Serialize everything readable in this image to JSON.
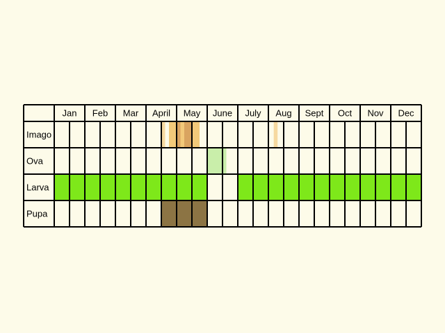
{
  "colors": {
    "background": "#fdfbe9",
    "cell": "#fdfbe9",
    "grid": "#000000",
    "imago": "#f2c97a",
    "imago_dark": "#d9a460",
    "imago_light": "#f6d9a0",
    "ova": "#c9eeaa",
    "larva": "#7ee81a",
    "pupa": "#8c7444"
  },
  "chart_data": {
    "type": "table",
    "months": [
      "Jan",
      "Feb",
      "Mar",
      "April",
      "May",
      "June",
      "July",
      "Aug",
      "Sept",
      "Oct",
      "Nov",
      "Dec"
    ],
    "stages": [
      "Imago",
      "Ova",
      "Larva",
      "Pupa"
    ],
    "periods_per_month": 2,
    "rows": [
      {
        "stage": "Imago",
        "segments": [
          {
            "start": 7.0,
            "end": 7.25,
            "tone": "imago_light"
          },
          {
            "start": 7.5,
            "end": 8.0,
            "tone": "imago"
          },
          {
            "start": 8.0,
            "end": 8.25,
            "tone": "imago_dark"
          },
          {
            "start": 8.25,
            "end": 8.5,
            "tone": "imago"
          },
          {
            "start": 8.5,
            "end": 9.0,
            "tone": "imago_dark"
          },
          {
            "start": 9.0,
            "end": 9.5,
            "tone": "imago"
          },
          {
            "start": 14.35,
            "end": 14.6,
            "tone": "imago_light"
          }
        ]
      },
      {
        "stage": "Ova",
        "segments": [
          {
            "start": 10.0,
            "end": 11.25,
            "tone": "ova"
          }
        ]
      },
      {
        "stage": "Larva",
        "segments": [
          {
            "start": 0.0,
            "end": 10.0,
            "tone": "larva"
          },
          {
            "start": 12.0,
            "end": 24.0,
            "tone": "larva"
          }
        ]
      },
      {
        "stage": "Pupa",
        "segments": [
          {
            "start": 7.0,
            "end": 10.0,
            "tone": "pupa"
          }
        ]
      }
    ]
  }
}
